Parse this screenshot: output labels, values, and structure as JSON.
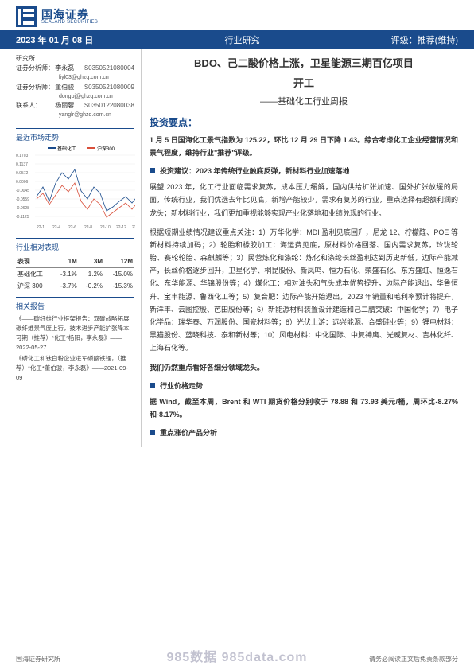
{
  "header": {
    "logo_cn": "国海证券",
    "logo_en": "SEALAND SECURITIES",
    "logo_color": "#1a4b8c"
  },
  "datebar": {
    "date": "2023 年 01 月 08 日",
    "center": "行业研究",
    "right": "评级：推荐(维持)",
    "bg": "#1a4b8c"
  },
  "analysts": {
    "org": "研究所",
    "rows": [
      {
        "label": "证券分析师：",
        "name": "李永磊",
        "code": "S0350521080004",
        "email": "liyl03@ghzq.com.cn"
      },
      {
        "label": "证券分析师：",
        "name": "董伯骏",
        "code": "S0350521080009",
        "email": "dongbj@ghzq.com.cn"
      },
      {
        "label": "联系人：",
        "name": "杨丽蓉",
        "code": "S0350122080038",
        "email": "yanglr@ghzq.com.cn"
      }
    ]
  },
  "market_trend": {
    "title": "最近市场走势",
    "legend": [
      "基础化工",
      "沪深300"
    ],
    "legend_colors": [
      "#1a4b8c",
      "#d94f3a"
    ],
    "y_ticks": [
      "0.1703",
      "0.1137",
      "0.0572",
      "0.0006",
      "-0.0045",
      "-0.0559",
      "-0.0628",
      "-0.1125"
    ],
    "x_ticks": [
      "22-1",
      "22-4",
      "22-6",
      "22-8",
      "22-10",
      "22-12",
      "23-1"
    ],
    "series": {
      "s1": {
        "color": "#1a4b8c",
        "points": [
          [
            0,
            52
          ],
          [
            8,
            40
          ],
          [
            16,
            58
          ],
          [
            24,
            35
          ],
          [
            32,
            22
          ],
          [
            40,
            30
          ],
          [
            48,
            18
          ],
          [
            56,
            45
          ],
          [
            64,
            55
          ],
          [
            72,
            40
          ],
          [
            80,
            48
          ],
          [
            88,
            70
          ],
          [
            96,
            65
          ],
          [
            104,
            58
          ],
          [
            112,
            52
          ],
          [
            120,
            60
          ],
          [
            128,
            50
          ],
          [
            136,
            62
          ],
          [
            144,
            66
          ],
          [
            148,
            60
          ]
        ]
      },
      "s2": {
        "color": "#d94f3a",
        "points": [
          [
            0,
            55
          ],
          [
            8,
            48
          ],
          [
            16,
            62
          ],
          [
            24,
            50
          ],
          [
            32,
            38
          ],
          [
            40,
            46
          ],
          [
            48,
            35
          ],
          [
            56,
            58
          ],
          [
            64,
            68
          ],
          [
            72,
            55
          ],
          [
            80,
            62
          ],
          [
            88,
            78
          ],
          [
            96,
            72
          ],
          [
            104,
            66
          ],
          [
            112,
            60
          ],
          [
            120,
            68
          ],
          [
            128,
            58
          ],
          [
            136,
            70
          ],
          [
            144,
            72
          ],
          [
            148,
            65
          ]
        ]
      }
    },
    "grid_color": "#dddddd",
    "bg": "#ffffff"
  },
  "perf": {
    "title": "行业相对表现",
    "headers": [
      "表现",
      "1M",
      "3M",
      "12M"
    ],
    "rows": [
      [
        "基础化工",
        "-3.1%",
        "1.2%",
        "-15.0%"
      ],
      [
        "沪深 300",
        "-3.7%",
        "-0.2%",
        "-15.3%"
      ]
    ]
  },
  "related": {
    "title": "相关报告",
    "items": [
      "《——碳纤维行业框架报告：双碳战略拓展碳纤维景气度上行，技术进步产能扩张降本可期（推荐）*化工*杨阳，李永磊》——2022-05-27",
      "《磷化工和钛白粉企业进军磷酸铁锂，（推荐）*化工*董伯骏，李永磊》——2021-09-09"
    ]
  },
  "main": {
    "title_l1": "BDO、己二酸价格上涨，卫星能源三期百亿项目",
    "title_l2": "开工",
    "subtitle": "——基础化工行业周报",
    "section1": "投资要点：",
    "p1": "1 月 5 日国海化工景气指数为 125.22，环比 12 月 29 日下降 1.43。综合考虑化工企业经营情况和景气程度，维持行业\"推荐\"评级。",
    "bullet1": "投资建议：2023 年传统行业触底反弹，新材料行业加速落地",
    "p2": "展望 2023 年，化工行业面临需求复苏，成本压力缓解，国内供给扩张加速、国外扩张放缓的局面，传统行业，我们优选去年比见底，新增产能较少，需求有复苏的行业，重点选择有超额利润的龙头；新材料行业，我们更加重视能够实现产业化落地和业绩兑现的行业。",
    "p3": "根据短期业绩情况建议重点关注：1）万华化学：MDI 盈利见底回升，尼龙 12、柠檬醛、POE 等新材料持续加码；2）轮胎和橡胶加工：海运费见底，原材料价格回落、国内需求复苏，玲珑轮胎、赛轮轮胎、森麒麟等；3）民营炼化和涤纶：炼化和涤纶长丝盈利达到历史新低，边际产能减产，长丝价格逐步回升，卫星化学、桐昆股份、新凤鸣、恒力石化、荣盛石化、东方盛虹、恒逸石化、东华能源、华锦股份等；4）煤化工：相对油头和气头成本优势提升，边际产能退出，华鲁恒升、宝丰能源、鲁西化工等；5）复合肥：边际产能开始退出，2023 年销量和毛利率预计将提升，新洋丰、云图控股、芭田股份等；6）新能源材料装置设计建造和己二腈突破：中国化学；7）电子化学品：瑞华泰、万润股份、国瓷材料等；8）光伏上游：远兴能源、合盛硅业等；9）锂电材料：黑猫股份、蓝晓科技、泰和新材等；10）风电材料：中化国际、中复神鹰、光威复材、吉林化纤、上海石化等。",
    "p4": "我们仍然重点看好各细分领域龙头。",
    "bullet2": "行业价格走势",
    "p5": "据 Wind，截至本周，Brent 和 WTI 期货价格分别收于 78.88 和 73.93 美元/桶，周环比-8.27%和-8.17%。",
    "bullet3": "重点涨价产品分析"
  },
  "footer": {
    "left": "国海证券研究所",
    "right": "请务必阅读正文后免责条款部分",
    "watermark": "985数据 985data.com"
  }
}
